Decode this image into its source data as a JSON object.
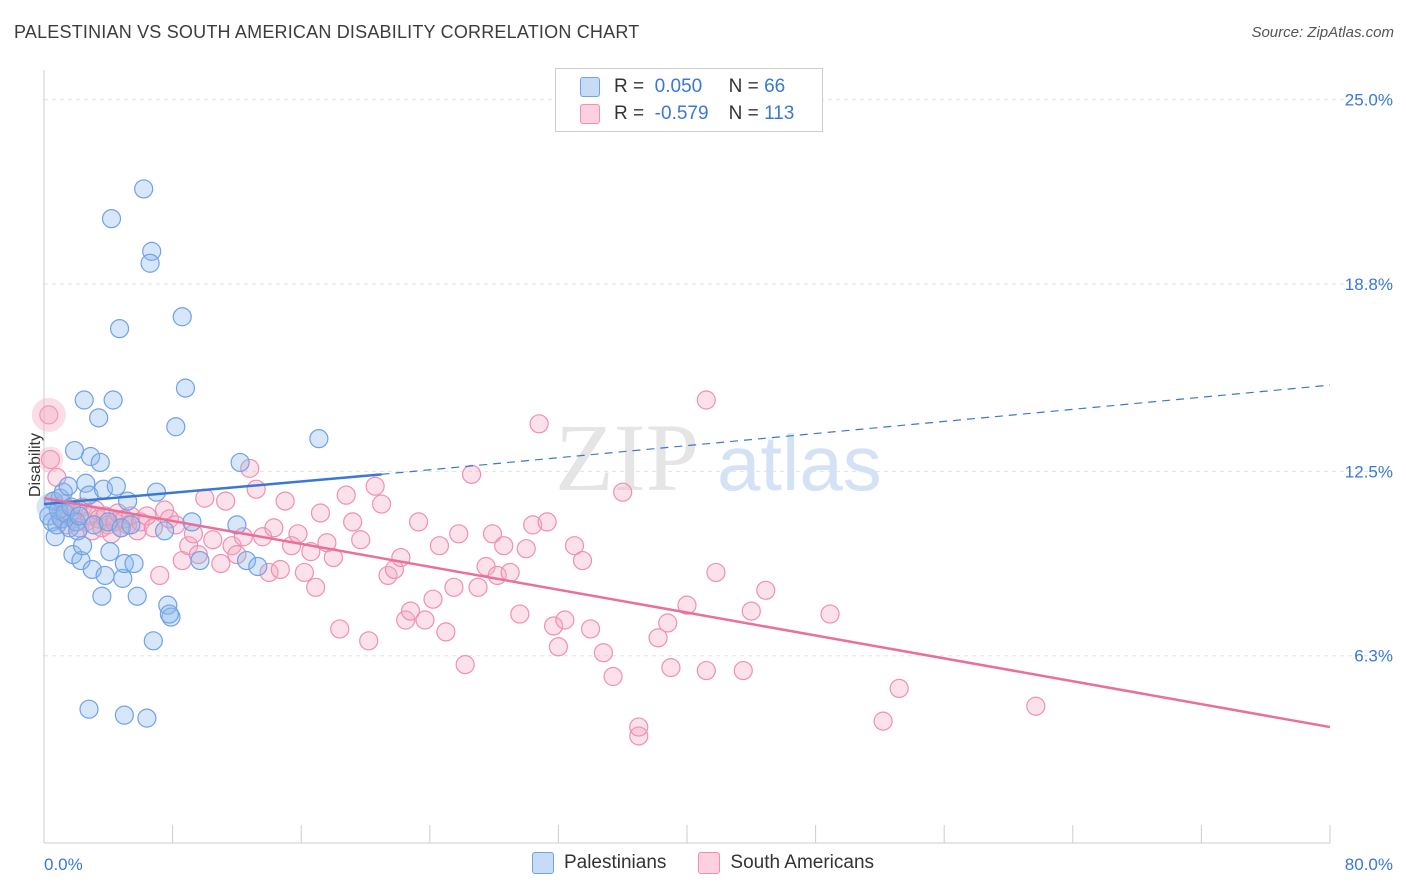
{
  "title": "PALESTINIAN VS SOUTH AMERICAN DISABILITY CORRELATION CHART",
  "source": "Source: ZipAtlas.com",
  "watermark": {
    "zip": "ZIP",
    "atlas": "atlas"
  },
  "legend": {
    "rows": [
      {
        "r_label": "R =",
        "r_value": "0.050",
        "n_label": "N =",
        "n_value": "66"
      },
      {
        "r_label": "R =",
        "r_value": "-0.579",
        "n_label": "N =",
        "n_value": "113"
      }
    ]
  },
  "bottom_legend": [
    "Palestinians",
    "South Americans"
  ],
  "colors": {
    "blue": "#6fa2e6",
    "blue_line": "#3a78d6",
    "pink": "#ef90b0",
    "pink_line": "#e8709a",
    "axis_label": "#3a78d6",
    "grid": "#e3e3e3"
  },
  "chart_data": {
    "type": "scatter",
    "title": "PALESTINIAN VS SOUTH AMERICAN DISABILITY CORRELATION CHART",
    "xlabel": "",
    "ylabel": "Disability",
    "xlim": [
      0,
      80
    ],
    "ylim": [
      0,
      26
    ],
    "x_tick_labels": [
      "0.0%",
      "80.0%"
    ],
    "y_ticks": [
      6.3,
      12.5,
      18.8,
      25.0
    ],
    "y_tick_labels": [
      "6.3%",
      "12.5%",
      "18.8%",
      "25.0%"
    ],
    "grid": true,
    "legend_position": "top-center",
    "series": [
      {
        "name": "Palestinians",
        "r": 0.05,
        "n": 66,
        "trend": {
          "x1": 0,
          "y1": 11.4,
          "x2": 21,
          "y2": 12.4,
          "dashed_to_x": 80,
          "dashed_to_y": 15.4
        },
        "points": [
          [
            0.3,
            11.0
          ],
          [
            0.5,
            10.8
          ],
          [
            0.6,
            11.5
          ],
          [
            0.7,
            10.3
          ],
          [
            0.8,
            10.7
          ],
          [
            0.9,
            11.2
          ],
          [
            1.0,
            11.6
          ],
          [
            1.1,
            10.9
          ],
          [
            1.2,
            11.8
          ],
          [
            1.3,
            11.1
          ],
          [
            1.5,
            12.0
          ],
          [
            1.6,
            10.6
          ],
          [
            1.7,
            11.3
          ],
          [
            1.8,
            9.7
          ],
          [
            1.9,
            13.2
          ],
          [
            2.0,
            10.8
          ],
          [
            2.1,
            10.5
          ],
          [
            2.2,
            11.0
          ],
          [
            2.3,
            9.5
          ],
          [
            2.4,
            10.0
          ],
          [
            2.5,
            14.9
          ],
          [
            2.6,
            12.1
          ],
          [
            2.8,
            11.7
          ],
          [
            2.9,
            13.0
          ],
          [
            3.0,
            9.2
          ],
          [
            3.1,
            10.7
          ],
          [
            2.8,
            4.5
          ],
          [
            3.4,
            14.3
          ],
          [
            3.5,
            12.8
          ],
          [
            3.6,
            8.3
          ],
          [
            3.7,
            11.9
          ],
          [
            3.8,
            9.0
          ],
          [
            4.0,
            10.8
          ],
          [
            4.1,
            9.8
          ],
          [
            4.2,
            21.0
          ],
          [
            4.3,
            14.9
          ],
          [
            4.5,
            12.0
          ],
          [
            4.7,
            17.3
          ],
          [
            4.8,
            10.6
          ],
          [
            4.9,
            8.9
          ],
          [
            5.0,
            9.4
          ],
          [
            5.2,
            11.5
          ],
          [
            5.4,
            10.7
          ],
          [
            5.6,
            9.4
          ],
          [
            5.8,
            8.3
          ],
          [
            5.0,
            4.3
          ],
          [
            6.2,
            22.0
          ],
          [
            6.4,
            4.2
          ],
          [
            6.7,
            19.9
          ],
          [
            6.6,
            19.5
          ],
          [
            6.8,
            6.8
          ],
          [
            7.0,
            11.8
          ],
          [
            7.5,
            10.5
          ],
          [
            7.7,
            8.0
          ],
          [
            7.9,
            7.6
          ],
          [
            7.8,
            7.7
          ],
          [
            8.2,
            14.0
          ],
          [
            8.6,
            17.7
          ],
          [
            8.8,
            15.3
          ],
          [
            9.2,
            10.8
          ],
          [
            9.7,
            9.5
          ],
          [
            12.0,
            10.7
          ],
          [
            12.2,
            12.8
          ],
          [
            12.6,
            9.5
          ],
          [
            13.3,
            9.3
          ],
          [
            17.1,
            13.6
          ]
        ]
      },
      {
        "name": "South Americans",
        "r": -0.579,
        "n": 113,
        "trend": {
          "x1": 0,
          "y1": 11.6,
          "x2": 80,
          "y2": 3.9
        },
        "points": [
          [
            0.3,
            14.4
          ],
          [
            0.4,
            12.9
          ],
          [
            0.6,
            11.5
          ],
          [
            0.8,
            12.3
          ],
          [
            1.0,
            11.0
          ],
          [
            1.2,
            11.4
          ],
          [
            1.4,
            10.7
          ],
          [
            1.6,
            11.1
          ],
          [
            1.8,
            10.9
          ],
          [
            2.0,
            11.2
          ],
          [
            2.2,
            10.6
          ],
          [
            2.4,
            11.3
          ],
          [
            2.6,
            10.8
          ],
          [
            2.8,
            11.0
          ],
          [
            3.0,
            10.5
          ],
          [
            3.2,
            11.2
          ],
          [
            3.4,
            10.9
          ],
          [
            3.6,
            10.6
          ],
          [
            3.8,
            11.0
          ],
          [
            4.0,
            10.7
          ],
          [
            4.2,
            10.4
          ],
          [
            4.4,
            10.8
          ],
          [
            4.6,
            11.1
          ],
          [
            4.8,
            10.6
          ],
          [
            5.0,
            10.9
          ],
          [
            5.2,
            10.7
          ],
          [
            5.4,
            11.0
          ],
          [
            5.8,
            10.5
          ],
          [
            6.0,
            10.8
          ],
          [
            6.4,
            11.0
          ],
          [
            6.8,
            10.6
          ],
          [
            7.2,
            9.0
          ],
          [
            7.5,
            11.2
          ],
          [
            7.8,
            10.9
          ],
          [
            8.2,
            10.7
          ],
          [
            8.6,
            9.5
          ],
          [
            9.0,
            10.0
          ],
          [
            9.3,
            10.4
          ],
          [
            9.6,
            9.7
          ],
          [
            10.0,
            11.6
          ],
          [
            10.5,
            10.2
          ],
          [
            11.0,
            9.4
          ],
          [
            11.3,
            11.5
          ],
          [
            11.7,
            10.0
          ],
          [
            12.0,
            9.7
          ],
          [
            12.4,
            10.3
          ],
          [
            12.8,
            12.6
          ],
          [
            13.2,
            11.9
          ],
          [
            13.6,
            10.3
          ],
          [
            14.0,
            9.1
          ],
          [
            14.3,
            10.6
          ],
          [
            14.7,
            9.2
          ],
          [
            15.0,
            11.5
          ],
          [
            15.4,
            10.0
          ],
          [
            15.8,
            10.4
          ],
          [
            16.2,
            9.1
          ],
          [
            16.6,
            9.8
          ],
          [
            16.9,
            8.6
          ],
          [
            17.2,
            11.1
          ],
          [
            17.6,
            10.1
          ],
          [
            18.0,
            9.6
          ],
          [
            18.4,
            7.2
          ],
          [
            18.8,
            11.7
          ],
          [
            19.2,
            10.8
          ],
          [
            19.7,
            10.2
          ],
          [
            20.2,
            6.8
          ],
          [
            20.6,
            12.0
          ],
          [
            21.0,
            11.4
          ],
          [
            21.4,
            9.0
          ],
          [
            21.8,
            9.2
          ],
          [
            22.2,
            9.6
          ],
          [
            22.5,
            7.5
          ],
          [
            22.8,
            7.8
          ],
          [
            23.3,
            10.8
          ],
          [
            23.7,
            7.5
          ],
          [
            24.2,
            8.2
          ],
          [
            24.6,
            10.0
          ],
          [
            25.0,
            7.1
          ],
          [
            25.5,
            8.6
          ],
          [
            25.8,
            10.4
          ],
          [
            26.2,
            6.0
          ],
          [
            26.6,
            12.4
          ],
          [
            27.0,
            8.6
          ],
          [
            27.5,
            9.3
          ],
          [
            27.9,
            10.4
          ],
          [
            28.2,
            9.0
          ],
          [
            28.6,
            10.0
          ],
          [
            29.0,
            9.1
          ],
          [
            29.6,
            7.7
          ],
          [
            30.0,
            9.9
          ],
          [
            30.4,
            10.7
          ],
          [
            30.8,
            14.1
          ],
          [
            31.3,
            10.8
          ],
          [
            31.7,
            7.3
          ],
          [
            32.0,
            6.6
          ],
          [
            32.4,
            7.5
          ],
          [
            33.0,
            10.0
          ],
          [
            33.5,
            9.5
          ],
          [
            34.0,
            7.2
          ],
          [
            34.8,
            6.4
          ],
          [
            35.4,
            5.6
          ],
          [
            36.0,
            11.8
          ],
          [
            37.0,
            3.6
          ],
          [
            38.2,
            6.9
          ],
          [
            38.8,
            7.4
          ],
          [
            39.0,
            5.9
          ],
          [
            40.0,
            8.0
          ],
          [
            41.2,
            14.9
          ],
          [
            41.8,
            9.1
          ],
          [
            43.5,
            5.8
          ],
          [
            44.0,
            7.8
          ],
          [
            44.9,
            8.5
          ],
          [
            48.9,
            7.7
          ]
        ],
        "extra_points": [
          [
            37.0,
            3.9
          ],
          [
            41.2,
            5.8
          ],
          [
            52.2,
            4.1
          ],
          [
            53.2,
            5.2
          ],
          [
            61.7,
            4.6
          ]
        ]
      }
    ]
  }
}
